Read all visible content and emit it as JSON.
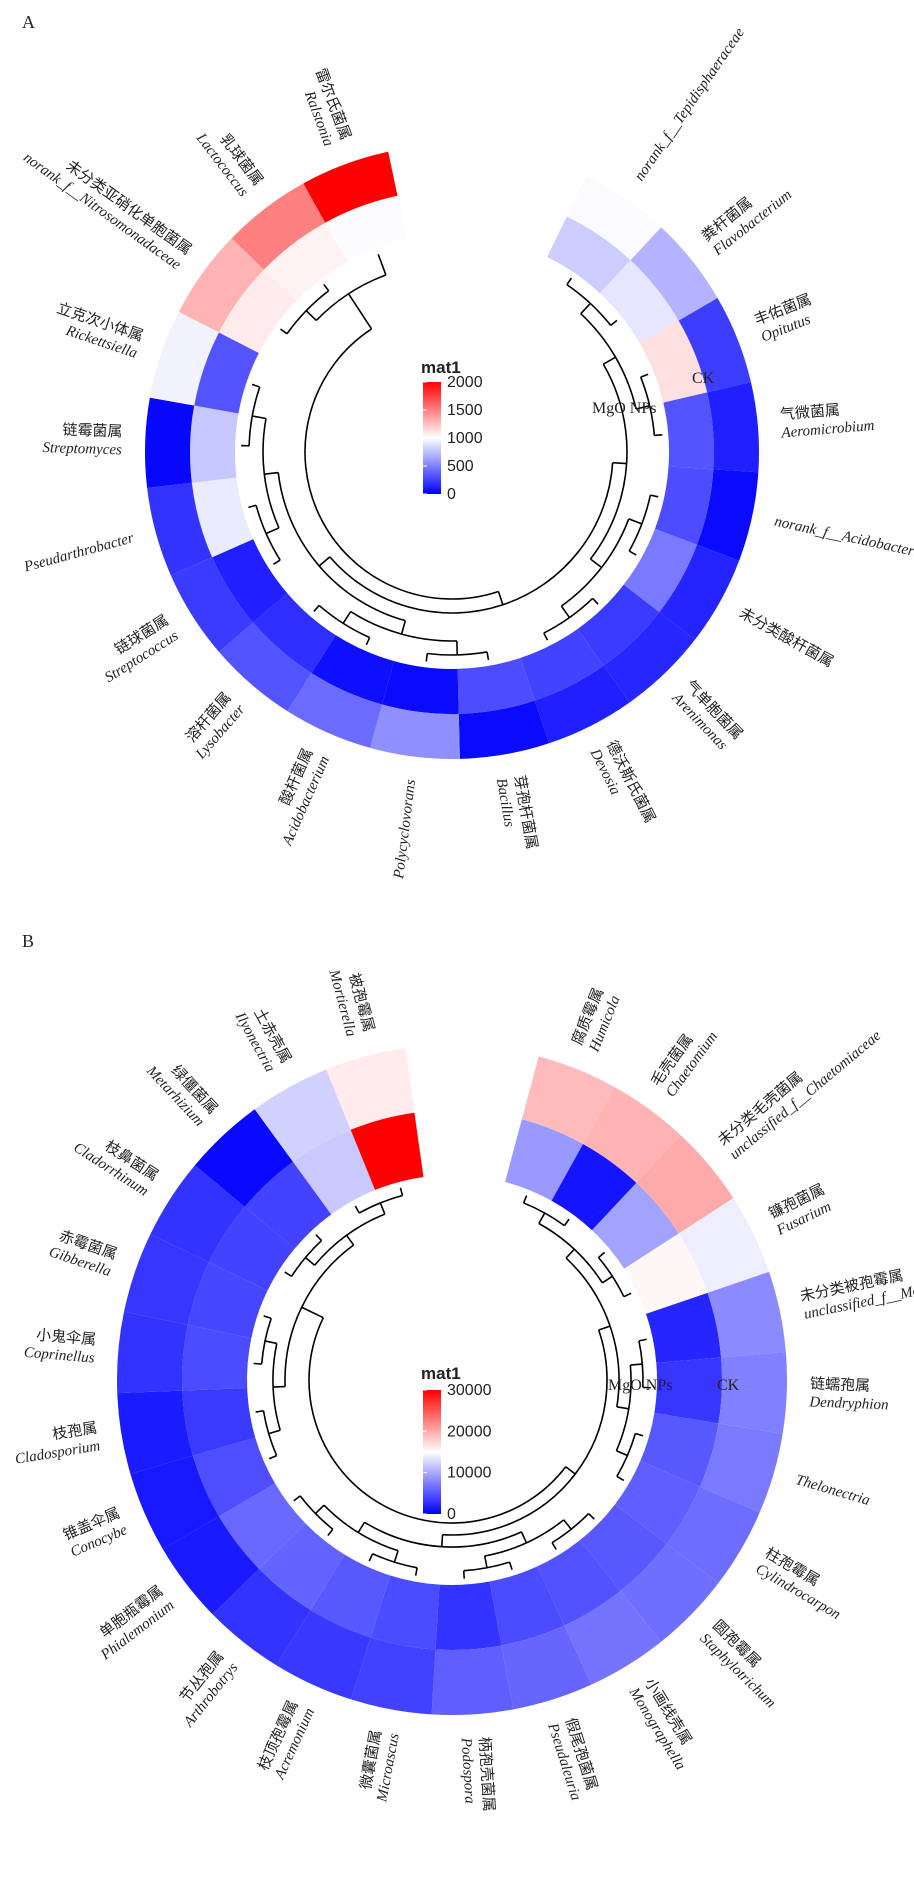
{
  "chart_data": [
    {
      "type": "heatmap",
      "panel": "A",
      "rings": [
        "MgO NPs",
        "CK"
      ],
      "legend": {
        "title": "mat1",
        "ticks": [
          2000,
          1500,
          1000,
          500,
          0
        ],
        "range": [
          0,
          2000
        ],
        "colors": {
          "low": "#0000ff",
          "mid": "#ffffff",
          "high": "#ff0000"
        }
      },
      "taxa": [
        {
          "cn": "",
          "latin": "norank_f__Tepidisphaeraceae",
          "CK": 980,
          "MgO": 800
        },
        {
          "cn": "粪杆菌属",
          "latin": "Flavobacterium",
          "CK": 700,
          "MgO": 900
        },
        {
          "cn": "丰佑菌属",
          "latin": "Opitutus",
          "CK": 240,
          "MgO": 1120
        },
        {
          "cn": "气微菌属",
          "latin": "Aeromicrobium",
          "CK": 120,
          "MgO": 330
        },
        {
          "cn": "",
          "latin": "norank_f__Acidobacteriaceae",
          "CK": 40,
          "MgO": 300
        },
        {
          "cn": "未分类酸杆菌属",
          "latin": "",
          "CK": 140,
          "MgO": 480
        },
        {
          "cn": "气单胞菌属",
          "latin": "Arenimonas",
          "CK": 150,
          "MgO": 230
        },
        {
          "cn": "德沃斯氏菌属",
          "latin": "Devosia",
          "CK": 120,
          "MgO": 260
        },
        {
          "cn": "芽孢杆菌属",
          "latin": "Bacillus",
          "CK": 40,
          "MgO": 300
        },
        {
          "cn": "",
          "latin": "Polycyclovorans",
          "CK": 560,
          "MgO": 40
        },
        {
          "cn": "酸杆菌属",
          "latin": "Acidobacterium",
          "CK": 420,
          "MgO": 60
        },
        {
          "cn": "溶杆菌属",
          "latin": "Lysobacter",
          "CK": 330,
          "MgO": 180
        },
        {
          "cn": "链球菌属",
          "latin": "Streptococcus",
          "CK": 230,
          "MgO": 120
        },
        {
          "cn": "",
          "latin": "Pseudarthrobacter",
          "CK": 200,
          "MgO": 920
        },
        {
          "cn": "链霉菌属",
          "latin": "Streptomyces",
          "CK": 30,
          "MgO": 780
        },
        {
          "cn": "立克次小体属",
          "latin": "Rickettsiella",
          "CK": 950,
          "MgO": 330
        },
        {
          "cn": "未分类亚硝化单胞菌属",
          "latin": "norank_f__Nitrosomonadaceae",
          "CK": 1300,
          "MgO": 1080
        },
        {
          "cn": "乳球菌属",
          "latin": "Lactococcus",
          "CK": 1500,
          "MgO": 1050
        },
        {
          "cn": "雷尔氏菌属",
          "latin": "Ralstonia",
          "CK": 2000,
          "MgO": 990
        }
      ]
    },
    {
      "type": "heatmap",
      "panel": "B",
      "rings": [
        "MgO NPs",
        "CK"
      ],
      "legend": {
        "title": "mat1",
        "ticks": [
          30000,
          20000,
          10000,
          0
        ],
        "range": [
          0,
          30000
        ],
        "colors": {
          "low": "#0000ff",
          "mid": "#ffffff",
          "high": "#ff0000"
        }
      },
      "taxa": [
        {
          "cn": "腐质霉属",
          "latin": "Humicola",
          "CK": 19000,
          "MgO": 9000
        },
        {
          "cn": "毛壳菌属",
          "latin": "Chaetomium",
          "CK": 19500,
          "MgO": 1200
        },
        {
          "cn": "未分类毛壳菌属",
          "latin": "unclassified_f__Chaetomiaceae",
          "CK": 20000,
          "MgO": 9500
        },
        {
          "cn": "镰孢菌属",
          "latin": "Fusarium",
          "CK": 14000,
          "MgO": 15500
        },
        {
          "cn": "未分类被孢霉属",
          "latin": "unclassified_f__Mortierellaceae",
          "CK": 8200,
          "MgO": 2200
        },
        {
          "cn": "链蠕孢属",
          "latin": "Dendryphion",
          "CK": 7600,
          "MgO": 3200
        },
        {
          "cn": "",
          "latin": "Thelonectria",
          "CK": 7200,
          "MgO": 5200
        },
        {
          "cn": "柱孢霉属",
          "latin": "Cylindrocarpon",
          "CK": 6400,
          "MgO": 5600
        },
        {
          "cn": "圆孢霉属",
          "latin": "Staphylotrichum",
          "CK": 6500,
          "MgO": 5200
        },
        {
          "cn": "小画线壳属",
          "latin": "Monographella",
          "CK": 6800,
          "MgO": 4800
        },
        {
          "cn": "假尾孢菌属",
          "latin": "Pseudaleuria",
          "CK": 6000,
          "MgO": 4400
        },
        {
          "cn": "柄孢壳菌属",
          "latin": "Podospora",
          "CK": 5600,
          "MgO": 3000
        },
        {
          "cn": "微囊菌属",
          "latin": "Microascus",
          "CK": 3800,
          "MgO": 4400
        },
        {
          "cn": "枝顶孢霉属",
          "latin": "Acremonium",
          "CK": 3300,
          "MgO": 5200
        },
        {
          "cn": "节丛孢属",
          "latin": "Arthrobotrys",
          "CK": 3000,
          "MgO": 5800
        },
        {
          "cn": "单胞瓶霉属",
          "latin": "Phialemonium",
          "CK": 1500,
          "MgO": 6200
        },
        {
          "cn": "锥盖伞属",
          "latin": "Conocybe",
          "CK": 1400,
          "MgO": 4600
        },
        {
          "cn": "枝孢属",
          "latin": "Cladosporium",
          "CK": 1600,
          "MgO": 3400
        },
        {
          "cn": "小鬼伞属",
          "latin": "Coprinellus",
          "CK": 3000,
          "MgO": 4400
        },
        {
          "cn": "赤霉菌属",
          "latin": "Gibberella",
          "CK": 3200,
          "MgO": 4100
        },
        {
          "cn": "枝鼻菌属",
          "latin": "Cladorrhinum",
          "CK": 3000,
          "MgO": 3900
        },
        {
          "cn": "绿僵菌属",
          "latin": "Metarhizium",
          "CK": 500,
          "MgO": 3900
        },
        {
          "cn": "土赤壳属",
          "latin": "Ilyonectria",
          "CK": 12300,
          "MgO": 11800
        },
        {
          "cn": "被孢霉属",
          "latin": "Mortierella",
          "CK": 16200,
          "MgO": 30000
        }
      ]
    }
  ]
}
